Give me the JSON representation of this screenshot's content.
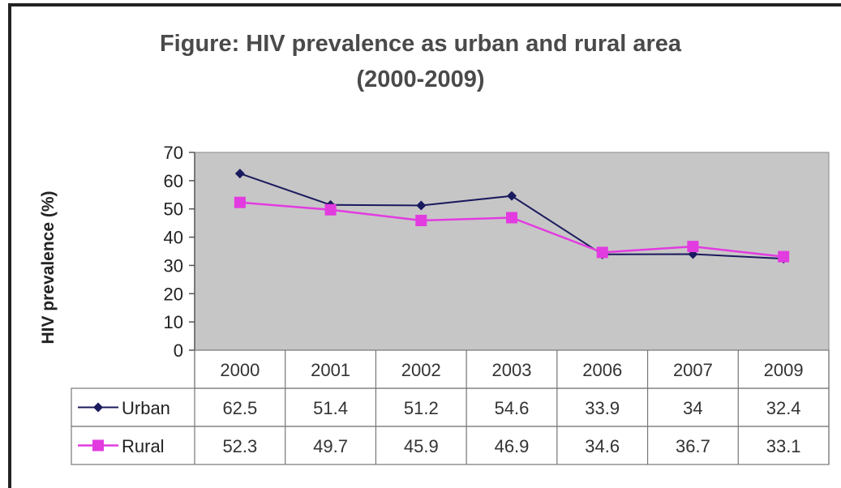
{
  "chart_data": {
    "type": "line",
    "title": "Figure: HIV prevalence as urban and rural area",
    "subtitle": "(2000-2009)",
    "ylabel": "HIV prevalence (%)",
    "xlabel": "",
    "ylim": [
      0,
      70
    ],
    "yticks": [
      "0",
      "10",
      "20",
      "30",
      "40",
      "50",
      "60",
      "70"
    ],
    "grid": false,
    "legend": "data-table-left",
    "categories": [
      "2000",
      "2001",
      "2002",
      "2003",
      "2006",
      "2007",
      "2009"
    ],
    "series": [
      {
        "name": "Urban",
        "values": [
          62.5,
          51.4,
          51.2,
          54.6,
          33.9,
          34,
          32.4
        ],
        "labels": [
          "62.5",
          "51.4",
          "51.2",
          "54.6",
          "33.9",
          "34",
          "32.4"
        ],
        "color": "#1a1a5e",
        "marker": "diamond"
      },
      {
        "name": "Rural",
        "values": [
          52.3,
          49.7,
          45.9,
          46.9,
          34.6,
          36.7,
          33.1
        ],
        "labels": [
          "52.3",
          "49.7",
          "45.9",
          "46.9",
          "34.6",
          "36.7",
          "33.1"
        ],
        "color": "#e23be0",
        "marker": "square"
      }
    ],
    "plot_bg": "#c6c6c6"
  }
}
